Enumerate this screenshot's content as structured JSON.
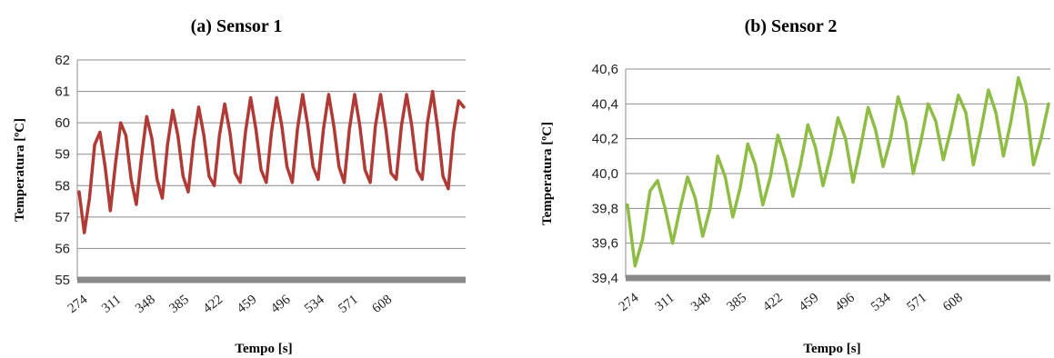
{
  "chart_data": [
    {
      "type": "line",
      "title": "(a)  Sensor 1",
      "xlabel": "Tempo [s]",
      "ylabel": "Temperatura [ºC]",
      "ylim": [
        55,
        62
      ],
      "yticks": [
        "55",
        "56",
        "57",
        "58",
        "59",
        "60",
        "61",
        "62"
      ],
      "xticks": [
        "274",
        "311",
        "348",
        "385",
        "422",
        "459",
        "496",
        "534",
        "571",
        "608"
      ],
      "grid": true,
      "color": "#b03a36",
      "series": [
        {
          "values": [
            57.8,
            56.5,
            57.6,
            59.3,
            59.7,
            58.6,
            57.2,
            58.7,
            60.0,
            59.6,
            58.2,
            57.4,
            58.9,
            60.2,
            59.5,
            58.2,
            57.6,
            59.3,
            60.4,
            59.6,
            58.3,
            57.8,
            59.4,
            60.5,
            59.6,
            58.3,
            58.0,
            59.6,
            60.6,
            59.7,
            58.4,
            58.1,
            59.7,
            60.8,
            59.8,
            58.5,
            58.1,
            59.7,
            60.8,
            59.9,
            58.6,
            58.1,
            59.8,
            60.9,
            59.9,
            58.6,
            58.2,
            59.8,
            60.9,
            59.9,
            58.6,
            58.1,
            59.8,
            60.9,
            59.9,
            58.5,
            58.1,
            59.9,
            60.9,
            59.8,
            58.4,
            58.2,
            59.9,
            60.9,
            59.9,
            58.5,
            58.2,
            60.0,
            61.0,
            59.8,
            58.3,
            57.9,
            59.7,
            60.7,
            60.5
          ]
        }
      ]
    },
    {
      "type": "line",
      "title": "(b)  Sensor 2",
      "xlabel": "Tempo [s]",
      "ylabel": "Temperatura [ºC]",
      "ylim": [
        39.4,
        40.6
      ],
      "yticks": [
        "39,4",
        "39,6",
        "39,8",
        "40,0",
        "40,2",
        "40,4",
        "40,6"
      ],
      "xticks": [
        "274",
        "311",
        "348",
        "385",
        "422",
        "459",
        "496",
        "534",
        "571",
        "608"
      ],
      "grid": true,
      "color": "#8fbc45",
      "series": [
        {
          "values": [
            39.82,
            39.47,
            39.62,
            39.9,
            39.96,
            39.8,
            39.6,
            39.8,
            39.98,
            39.86,
            39.64,
            39.8,
            40.1,
            39.98,
            39.75,
            39.92,
            40.17,
            40.05,
            39.82,
            39.98,
            40.22,
            40.08,
            39.87,
            40.05,
            40.28,
            40.15,
            39.93,
            40.1,
            40.32,
            40.2,
            39.95,
            40.15,
            40.38,
            40.25,
            40.04,
            40.2,
            40.44,
            40.3,
            40.0,
            40.18,
            40.4,
            40.3,
            40.08,
            40.25,
            40.45,
            40.35,
            40.05,
            40.25,
            40.48,
            40.35,
            40.1,
            40.3,
            40.55,
            40.4,
            40.05,
            40.2,
            40.4
          ]
        }
      ]
    }
  ]
}
